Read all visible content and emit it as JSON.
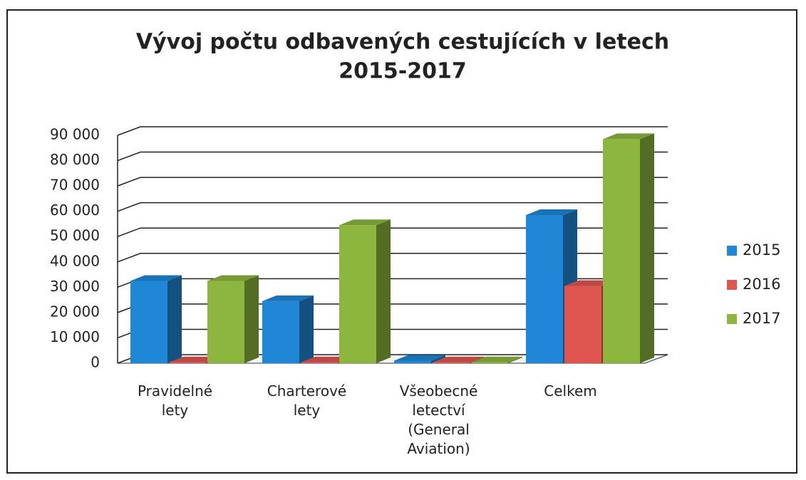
{
  "chart_data": {
    "type": "bar3d",
    "title": [
      "Vývoj počtu odbavených cestujících v letech",
      "2015-2017"
    ],
    "categories": [
      "Pravidelné\nlety",
      "Charterové\nlety",
      "Všeobecné\nletectví\n(General\nAviation)",
      "Celkem"
    ],
    "series": [
      {
        "name": "2015",
        "color": "#1f87d6",
        "values": [
          32500,
          24500,
          1000,
          58500
        ]
      },
      {
        "name": "2016",
        "color": "#df5550",
        "values": [
          300,
          300,
          300,
          30500
        ]
      },
      {
        "name": "2017",
        "color": "#8cb63d",
        "values": [
          32500,
          54500,
          300,
          88500
        ]
      }
    ],
    "ylim": [
      0,
      90000
    ],
    "yticks": [
      0,
      {
        "value": 10000,
        "label": "10 000"
      },
      {
        "value": 20000,
        "label": "20 000"
      },
      {
        "value": 30000,
        "label": "30 000"
      },
      {
        "value": 40000,
        "label": "40 000"
      },
      {
        "value": 50000,
        "label": "50 000"
      },
      {
        "value": 60000,
        "label": "60 000"
      },
      {
        "value": 70000,
        "label": "70 000"
      },
      {
        "value": 80000,
        "label": "80 000"
      },
      {
        "value": 90000,
        "label": "90 000"
      }
    ],
    "grid": true,
    "legend": "right"
  }
}
